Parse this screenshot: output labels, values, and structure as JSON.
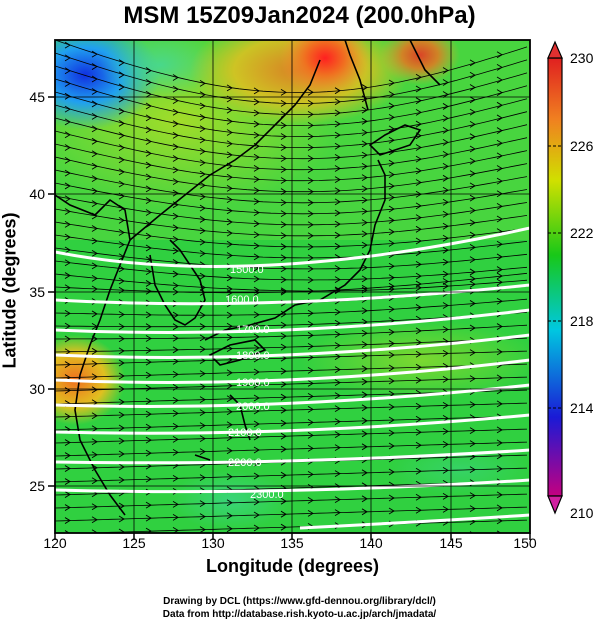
{
  "title": "MSM 15Z09Jan2024 (200.0hPa)",
  "axes": {
    "xlabel": "Longitude (degrees)",
    "ylabel": "Latitude  (degrees)",
    "xticks": [
      "120",
      "125",
      "130",
      "135",
      "140",
      "145",
      "150"
    ],
    "yticks": [
      "25",
      "30",
      "35",
      "40",
      "45"
    ]
  },
  "colorbar": {
    "labels": [
      "230",
      "226",
      "222",
      "218",
      "214",
      "210"
    ],
    "colors": [
      "#c40080",
      "#1a1ad6",
      "#00c8e0",
      "#18c818",
      "#d0e000",
      "#f08020",
      "#e02020"
    ]
  },
  "contours": {
    "labels": [
      "1500.0",
      "1600.0",
      "1700.0",
      "1800.0",
      "1900.0",
      "2000.0",
      "2100.0",
      "2200.0",
      "2300.0"
    ]
  },
  "credits": {
    "line1": "Drawing by DCL (https://www.gfd-dennou.org/library/dcl/)",
    "line2": "Data from http://database.rish.kyoto-u.ac.jp/arch/jmadata/"
  }
}
